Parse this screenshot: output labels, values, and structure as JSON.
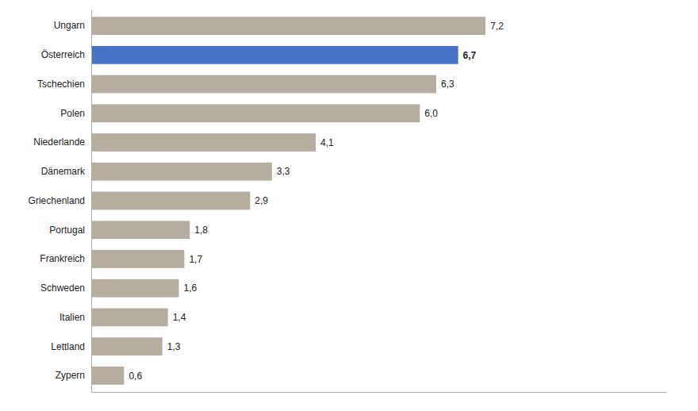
{
  "chart_data": {
    "type": "bar",
    "orientation": "horizontal",
    "categories": [
      "Ungarn",
      "Österreich",
      "Tschechien",
      "Polen",
      "Niederlande",
      "Dänemark",
      "Griechenland",
      "Portugal",
      "Frankreich",
      "Schweden",
      "Italien",
      "Lettland",
      "Zypern"
    ],
    "values": [
      7.2,
      6.7,
      6.3,
      6.0,
      4.1,
      3.3,
      2.9,
      1.8,
      1.7,
      1.6,
      1.4,
      1.3,
      0.6
    ],
    "value_labels": [
      "7,2",
      "6,7",
      "6,3",
      "6,0",
      "4,1",
      "3,3",
      "2,9",
      "1,8",
      "1,7",
      "1,6",
      "1,4",
      "1,3",
      "0,6"
    ],
    "colors": [
      "#b5ada0",
      "#4472c4",
      "#b5ada0",
      "#b5ada0",
      "#b5ada0",
      "#b5ada0",
      "#b5ada0",
      "#b5ada0",
      "#b5ada0",
      "#b5ada0",
      "#b5ada0",
      "#b5ada0",
      "#b5ada0"
    ],
    "xlim": [
      0,
      10.5
    ],
    "data_labels": true,
    "tick_labels": "y",
    "grid": false
  }
}
